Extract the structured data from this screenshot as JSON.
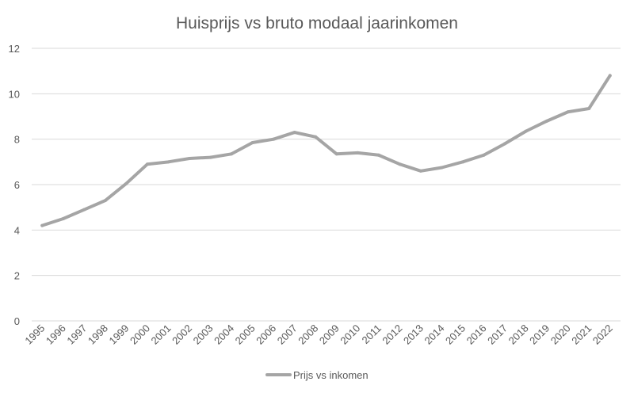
{
  "chart_data": {
    "type": "line",
    "title": "Huisprijs vs bruto modaal jaarinkomen",
    "xlabel": "",
    "ylabel": "",
    "ylim": [
      0,
      12
    ],
    "y_ticks": [
      "0",
      "2",
      "4",
      "6",
      "8",
      "10",
      "12"
    ],
    "categories": [
      "1995",
      "1996",
      "1997",
      "1998",
      "1999",
      "2000",
      "2001",
      "2002",
      "2003",
      "2004",
      "2005",
      "2006",
      "2007",
      "2008",
      "2009",
      "2010",
      "2011",
      "2012",
      "2013",
      "2014",
      "2015",
      "2016",
      "2017",
      "2018",
      "2019",
      "2020",
      "2021",
      "2022"
    ],
    "series": [
      {
        "name": "Prijs vs inkomen",
        "color": "#a5a5a5",
        "values": [
          4.2,
          4.5,
          4.9,
          5.3,
          6.05,
          6.9,
          7.0,
          7.15,
          7.2,
          7.35,
          7.85,
          8.0,
          8.3,
          8.1,
          7.35,
          7.4,
          7.3,
          6.9,
          6.6,
          6.75,
          7.0,
          7.3,
          7.8,
          8.35,
          8.8,
          9.2,
          9.35,
          10.8
        ]
      }
    ],
    "grid": true,
    "legend_position": "bottom"
  }
}
